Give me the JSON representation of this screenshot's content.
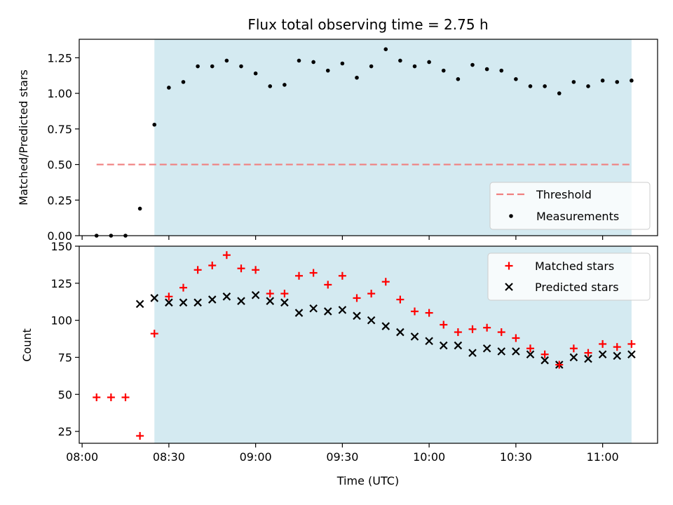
{
  "colors": {
    "shade": "#d4eaf1",
    "threshold": "#f08080",
    "measurement": "#000000",
    "matched": "#ff0000",
    "predicted": "#000000"
  },
  "chart_data": [
    {
      "type": "scatter",
      "title": "Flux total observing time = 2.75 h",
      "xlabel": "",
      "ylabel": "Matched/Predicted stars",
      "ylim": [
        0,
        1.38
      ],
      "yticks": [
        0.0,
        0.25,
        0.5,
        0.75,
        1.0,
        1.25
      ],
      "ytick_labels": [
        "0.00",
        "0.25",
        "0.50",
        "0.75",
        "1.00",
        "1.25"
      ],
      "shaded_interval": [
        "08:25",
        "11:10"
      ],
      "legend_position": "lower right",
      "legend": [
        "Threshold",
        "Measurements"
      ],
      "threshold": {
        "name": "Threshold",
        "value": 0.5,
        "x_start": "08:05",
        "x_end": "11:10"
      },
      "series": [
        {
          "name": "Measurements",
          "marker": "dot",
          "x": [
            "08:05",
            "08:10",
            "08:15",
            "08:20",
            "08:25",
            "08:30",
            "08:35",
            "08:40",
            "08:45",
            "08:50",
            "08:55",
            "09:00",
            "09:05",
            "09:10",
            "09:15",
            "09:20",
            "09:25",
            "09:30",
            "09:35",
            "09:40",
            "09:45",
            "09:50",
            "09:55",
            "10:00",
            "10:05",
            "10:10",
            "10:15",
            "10:20",
            "10:25",
            "10:30",
            "10:35",
            "10:40",
            "10:45",
            "10:50",
            "10:55",
            "11:00",
            "11:05",
            "11:10"
          ],
          "values": [
            0.0,
            0.0,
            0.0,
            0.19,
            0.78,
            1.04,
            1.08,
            1.19,
            1.19,
            1.23,
            1.19,
            1.14,
            1.05,
            1.06,
            1.23,
            1.22,
            1.16,
            1.21,
            1.11,
            1.19,
            1.31,
            1.23,
            1.19,
            1.22,
            1.16,
            1.1,
            1.2,
            1.17,
            1.16,
            1.1,
            1.05,
            1.05,
            1.0,
            1.08,
            1.05,
            1.09,
            1.08,
            1.09
          ]
        }
      ]
    },
    {
      "type": "scatter",
      "title": "",
      "xlabel": "Time (UTC)",
      "ylabel": "Count",
      "ylim": [
        17,
        150
      ],
      "yticks": [
        25,
        50,
        75,
        100,
        125,
        150
      ],
      "ytick_labels": [
        "25",
        "50",
        "75",
        "100",
        "125",
        "150"
      ],
      "xlim": [
        "07:59",
        "11:19"
      ],
      "xticks": [
        "08:00",
        "08:30",
        "09:00",
        "09:30",
        "10:00",
        "10:30",
        "11:00"
      ],
      "xtick_labels": [
        "08:00",
        "08:30",
        "09:00",
        "09:30",
        "10:00",
        "10:30",
        "11:00"
      ],
      "shaded_interval": [
        "08:25",
        "11:10"
      ],
      "legend_position": "upper right",
      "legend": [
        "Matched stars",
        "Predicted stars"
      ],
      "series": [
        {
          "name": "Matched stars",
          "marker": "plus",
          "x": [
            "08:05",
            "08:10",
            "08:15",
            "08:20",
            "08:25",
            "08:30",
            "08:35",
            "08:40",
            "08:45",
            "08:50",
            "08:55",
            "09:00",
            "09:05",
            "09:10",
            "09:15",
            "09:20",
            "09:25",
            "09:30",
            "09:35",
            "09:40",
            "09:45",
            "09:50",
            "09:55",
            "10:00",
            "10:05",
            "10:10",
            "10:15",
            "10:20",
            "10:25",
            "10:30",
            "10:35",
            "10:40",
            "10:45",
            "10:50",
            "10:55",
            "11:00",
            "11:05",
            "11:10"
          ],
          "values": [
            48,
            48,
            48,
            22,
            91,
            116,
            122,
            134,
            137,
            144,
            135,
            134,
            118,
            118,
            130,
            132,
            124,
            130,
            115,
            118,
            126,
            114,
            106,
            105,
            97,
            92,
            94,
            95,
            92,
            88,
            81,
            77,
            70,
            81,
            78,
            84,
            82,
            84
          ]
        },
        {
          "name": "Predicted stars",
          "marker": "x",
          "x": [
            "08:20",
            "08:25",
            "08:30",
            "08:35",
            "08:40",
            "08:45",
            "08:50",
            "08:55",
            "09:00",
            "09:05",
            "09:10",
            "09:15",
            "09:20",
            "09:25",
            "09:30",
            "09:35",
            "09:40",
            "09:45",
            "09:50",
            "09:55",
            "10:00",
            "10:05",
            "10:10",
            "10:15",
            "10:20",
            "10:25",
            "10:30",
            "10:35",
            "10:40",
            "10:45",
            "10:50",
            "10:55",
            "11:00",
            "11:05",
            "11:10"
          ],
          "values": [
            111,
            115,
            112,
            112,
            112,
            114,
            116,
            113,
            117,
            113,
            112,
            105,
            108,
            106,
            107,
            103,
            100,
            96,
            92,
            89,
            86,
            83,
            83,
            78,
            81,
            79,
            79,
            77,
            73,
            70,
            75,
            74,
            77,
            76,
            77
          ]
        }
      ]
    }
  ]
}
